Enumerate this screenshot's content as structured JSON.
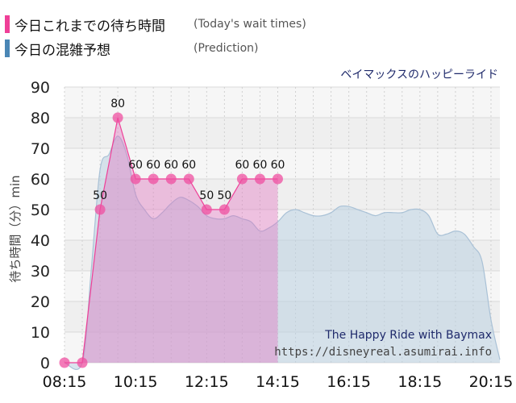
{
  "legend": {
    "actual": {
      "label": "今日これまでの待ち時間",
      "sublabel": "(Today's wait times)",
      "color": "#ef3f97"
    },
    "predicted": {
      "label": "今日の混雑予想",
      "sublabel": "(Prediction)",
      "color": "#4a86b5"
    }
  },
  "attraction_title": "ベイマックスのハッピーライド",
  "watermark": {
    "line1": "The Happy Ride with Baymax",
    "line2": "https://disneyreal.asumirai.info"
  },
  "chart_data": {
    "type": "area",
    "ylabel": "待ち時間（分）min",
    "xlabel": "",
    "ylim": [
      0,
      90
    ],
    "yticks": [
      0,
      10,
      20,
      30,
      40,
      50,
      60,
      70,
      80,
      90
    ],
    "xticks": [
      "08:15",
      "10:15",
      "12:15",
      "14:15",
      "16:15",
      "18:15",
      "20:15"
    ],
    "grid": true,
    "series": [
      {
        "name": "今日これまでの待ち時間",
        "color": "#ef3f97",
        "x": [
          "08:15",
          "08:45",
          "09:15",
          "09:45",
          "10:15",
          "10:45",
          "11:15",
          "11:45",
          "12:15",
          "12:45",
          "13:15",
          "13:45",
          "14:15"
        ],
        "values": [
          0,
          0,
          50,
          80,
          60,
          60,
          60,
          60,
          50,
          50,
          60,
          60,
          60
        ],
        "labels": [
          "",
          "",
          "50",
          "80",
          "60",
          "60",
          "60",
          "60",
          "50",
          "50",
          "60",
          "60",
          "60"
        ]
      },
      {
        "name": "今日の混雑予想",
        "color": "#4a86b5",
        "x": [
          "08:15",
          "08:45",
          "09:00",
          "09:15",
          "09:30",
          "09:45",
          "10:00",
          "10:15",
          "10:30",
          "10:45",
          "11:00",
          "11:15",
          "11:30",
          "11:45",
          "12:00",
          "12:15",
          "12:30",
          "12:45",
          "13:00",
          "13:15",
          "13:30",
          "13:45",
          "14:00",
          "14:15",
          "14:30",
          "14:45",
          "15:00",
          "15:15",
          "15:30",
          "15:45",
          "16:00",
          "16:15",
          "16:30",
          "16:45",
          "17:00",
          "17:15",
          "17:30",
          "17:45",
          "18:00",
          "18:15",
          "18:30",
          "18:45",
          "19:00",
          "19:15",
          "19:30",
          "19:45",
          "20:00",
          "20:15",
          "20:30"
        ],
        "values": [
          0,
          0,
          30,
          63,
          68,
          74,
          68,
          55,
          50,
          47,
          49,
          52,
          54,
          53,
          51,
          48,
          47,
          47,
          48,
          47,
          46,
          43,
          44,
          46,
          49,
          50,
          49,
          48,
          48,
          49,
          51,
          51,
          50,
          49,
          48,
          49,
          49,
          49,
          50,
          50,
          48,
          42,
          42,
          43,
          42,
          38,
          33,
          14,
          1
        ]
      }
    ]
  }
}
